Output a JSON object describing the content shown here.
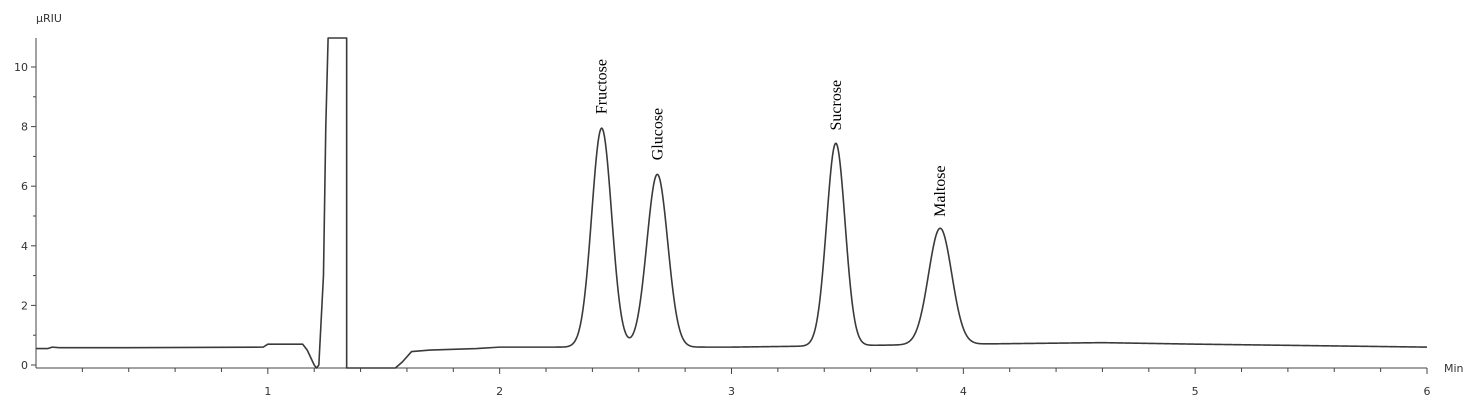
{
  "chart_data": {
    "type": "line",
    "title": "",
    "xlabel": "Min",
    "ylabel": "µRIU",
    "xlim": [
      0.0,
      6.0
    ],
    "ylim": [
      0,
      11
    ],
    "x_ticks": [
      1,
      2,
      3,
      4,
      5,
      6
    ],
    "y_ticks": [
      0,
      2,
      4,
      6,
      8,
      10
    ],
    "grid": false,
    "colors": {
      "trace": "#3a3a3a",
      "axis": "#444444"
    },
    "baseline": [
      [
        0.0,
        0.55
      ],
      [
        0.05,
        0.55
      ],
      [
        0.07,
        0.6
      ],
      [
        0.1,
        0.58
      ],
      [
        0.4,
        0.58
      ],
      [
        0.98,
        0.6
      ],
      [
        1.0,
        0.7
      ],
      [
        1.15,
        0.7
      ],
      [
        1.17,
        0.5
      ],
      [
        1.2,
        0.0
      ],
      [
        1.21,
        -0.3
      ],
      [
        1.22,
        0.0
      ],
      [
        1.24,
        3.0
      ],
      [
        1.25,
        8.0
      ],
      [
        1.26,
        11.0
      ],
      [
        1.34,
        11.0
      ],
      [
        1.34,
        -0.5
      ],
      [
        1.55,
        -0.5
      ],
      [
        1.58,
        0.1
      ],
      [
        1.62,
        0.45
      ],
      [
        1.7,
        0.5
      ],
      [
        1.9,
        0.55
      ],
      [
        2.0,
        0.6
      ],
      [
        3.0,
        0.6
      ],
      [
        3.5,
        0.65
      ],
      [
        4.0,
        0.7
      ],
      [
        4.6,
        0.75
      ],
      [
        5.0,
        0.7
      ],
      [
        5.5,
        0.65
      ],
      [
        6.0,
        0.6
      ]
    ],
    "peaks": [
      {
        "name": "Fructose",
        "rt": 2.44,
        "height": 7.95,
        "sigma": 0.043
      },
      {
        "name": "Glucose",
        "rt": 2.68,
        "height": 6.4,
        "sigma": 0.045
      },
      {
        "name": "Sucrose",
        "rt": 3.45,
        "height": 7.4,
        "sigma": 0.04
      },
      {
        "name": "Maltose",
        "rt": 3.9,
        "height": 4.5,
        "sigma": 0.05
      }
    ]
  }
}
